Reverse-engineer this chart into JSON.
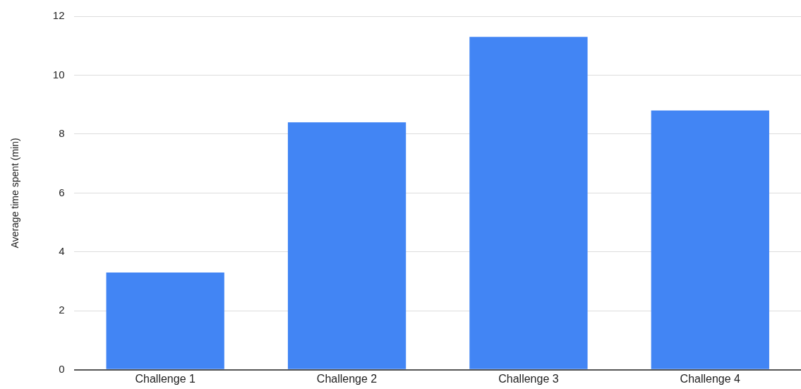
{
  "chart_data": {
    "type": "bar",
    "ylabel": "Average time spent (min)",
    "categories": [
      "Challenge 1",
      "Challenge 2",
      "Challenge 3",
      "Challenge 4"
    ],
    "values": [
      3.3,
      8.4,
      11.3,
      8.8
    ],
    "color": "#4285f4",
    "ylim": [
      0,
      12
    ],
    "yticks": [
      0,
      2,
      4,
      6,
      8,
      10,
      12
    ],
    "grid": "y"
  }
}
